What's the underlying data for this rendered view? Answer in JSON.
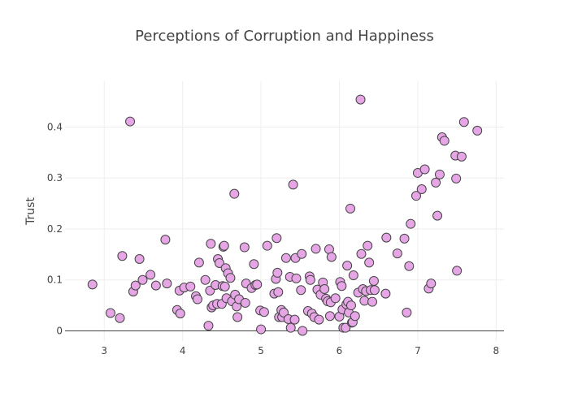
{
  "chart_data": {
    "type": "scatter",
    "title": "Perceptions of Corruption and Happiness",
    "xlabel": "",
    "ylabel": "Trust",
    "xlim": [
      2.5,
      8.1
    ],
    "ylim": [
      -0.02,
      0.49
    ],
    "x_ticks": [
      "3",
      "4",
      "5",
      "6",
      "7",
      "8"
    ],
    "y_ticks": [
      "0",
      "0.1",
      "0.2",
      "0.3",
      "0.4"
    ],
    "grid": true,
    "marker_color": "#e6a6e6",
    "marker_edge_color": "#444444",
    "points": [
      [
        2.85,
        0.091
      ],
      [
        3.08,
        0.035
      ],
      [
        3.2,
        0.025
      ],
      [
        3.23,
        0.147
      ],
      [
        3.33,
        0.411
      ],
      [
        3.37,
        0.077
      ],
      [
        3.4,
        0.089
      ],
      [
        3.45,
        0.141
      ],
      [
        3.49,
        0.1
      ],
      [
        3.59,
        0.11
      ],
      [
        3.66,
        0.089
      ],
      [
        3.78,
        0.179
      ],
      [
        3.8,
        0.093
      ],
      [
        3.93,
        0.041
      ],
      [
        3.96,
        0.079
      ],
      [
        3.97,
        0.034
      ],
      [
        4.02,
        0.085
      ],
      [
        4.1,
        0.087
      ],
      [
        4.17,
        0.068
      ],
      [
        4.19,
        0.062
      ],
      [
        4.21,
        0.134
      ],
      [
        4.29,
        0.1
      ],
      [
        4.33,
        0.01
      ],
      [
        4.35,
        0.079
      ],
      [
        4.36,
        0.171
      ],
      [
        4.37,
        0.046
      ],
      [
        4.39,
        0.05
      ],
      [
        4.42,
        0.09
      ],
      [
        4.44,
        0.053
      ],
      [
        4.45,
        0.141
      ],
      [
        4.47,
        0.133
      ],
      [
        4.5,
        0.053
      ],
      [
        4.51,
        0.088
      ],
      [
        4.52,
        0.165
      ],
      [
        4.53,
        0.167
      ],
      [
        4.54,
        0.087
      ],
      [
        4.55,
        0.123
      ],
      [
        4.56,
        0.064
      ],
      [
        4.58,
        0.113
      ],
      [
        4.61,
        0.104
      ],
      [
        4.63,
        0.058
      ],
      [
        4.66,
        0.269
      ],
      [
        4.67,
        0.071
      ],
      [
        4.69,
        0.048
      ],
      [
        4.7,
        0.027
      ],
      [
        4.72,
        0.062
      ],
      [
        4.79,
        0.164
      ],
      [
        4.8,
        0.055
      ],
      [
        4.81,
        0.093
      ],
      [
        4.88,
        0.084
      ],
      [
        4.91,
        0.131
      ],
      [
        4.93,
        0.09
      ],
      [
        4.95,
        0.091
      ],
      [
        4.99,
        0.04
      ],
      [
        5.0,
        0.003
      ],
      [
        5.04,
        0.037
      ],
      [
        5.08,
        0.167
      ],
      [
        5.17,
        0.073
      ],
      [
        5.19,
        0.102
      ],
      [
        5.2,
        0.182
      ],
      [
        5.21,
        0.114
      ],
      [
        5.22,
        0.076
      ],
      [
        5.23,
        0.027
      ],
      [
        5.26,
        0.041
      ],
      [
        5.27,
        0.027
      ],
      [
        5.29,
        0.036
      ],
      [
        5.32,
        0.143
      ],
      [
        5.35,
        0.023
      ],
      [
        5.37,
        0.106
      ],
      [
        5.38,
        0.006
      ],
      [
        5.41,
        0.287
      ],
      [
        5.43,
        0.022
      ],
      [
        5.44,
        0.143
      ],
      [
        5.45,
        0.103
      ],
      [
        5.51,
        0.08
      ],
      [
        5.52,
        0.151
      ],
      [
        5.53,
        0.0
      ],
      [
        5.6,
        0.039
      ],
      [
        5.62,
        0.107
      ],
      [
        5.63,
        0.1
      ],
      [
        5.65,
        0.034
      ],
      [
        5.68,
        0.027
      ],
      [
        5.7,
        0.161
      ],
      [
        5.72,
        0.081
      ],
      [
        5.74,
        0.022
      ],
      [
        5.76,
        0.071
      ],
      [
        5.79,
        0.095
      ],
      [
        5.81,
        0.082
      ],
      [
        5.83,
        0.063
      ],
      [
        5.85,
        0.058
      ],
      [
        5.87,
        0.16
      ],
      [
        5.88,
        0.029
      ],
      [
        5.89,
        0.056
      ],
      [
        5.9,
        0.145
      ],
      [
        5.95,
        0.064
      ],
      [
        6.0,
        0.028
      ],
      [
        6.01,
        0.096
      ],
      [
        6.03,
        0.088
      ],
      [
        6.04,
        0.042
      ],
      [
        6.05,
        0.006
      ],
      [
        6.08,
        0.006
      ],
      [
        6.09,
        0.052
      ],
      [
        6.1,
        0.128
      ],
      [
        6.11,
        0.057
      ],
      [
        6.12,
        0.036
      ],
      [
        6.14,
        0.24
      ],
      [
        6.15,
        0.05
      ],
      [
        6.16,
        0.016
      ],
      [
        6.17,
        0.017
      ],
      [
        6.18,
        0.109
      ],
      [
        6.2,
        0.029
      ],
      [
        6.24,
        0.075
      ],
      [
        6.27,
        0.454
      ],
      [
        6.28,
        0.151
      ],
      [
        6.3,
        0.082
      ],
      [
        6.32,
        0.059
      ],
      [
        6.34,
        0.078
      ],
      [
        6.36,
        0.167
      ],
      [
        6.38,
        0.134
      ],
      [
        6.4,
        0.08
      ],
      [
        6.42,
        0.057
      ],
      [
        6.44,
        0.098
      ],
      [
        6.45,
        0.08
      ],
      [
        6.59,
        0.073
      ],
      [
        6.6,
        0.183
      ],
      [
        6.74,
        0.152
      ],
      [
        6.83,
        0.181
      ],
      [
        6.86,
        0.036
      ],
      [
        6.89,
        0.127
      ],
      [
        6.91,
        0.21
      ],
      [
        6.98,
        0.265
      ],
      [
        7.0,
        0.31
      ],
      [
        7.05,
        0.278
      ],
      [
        7.09,
        0.317
      ],
      [
        7.14,
        0.083
      ],
      [
        7.17,
        0.093
      ],
      [
        7.23,
        0.291
      ],
      [
        7.25,
        0.226
      ],
      [
        7.28,
        0.307
      ],
      [
        7.31,
        0.38
      ],
      [
        7.34,
        0.373
      ],
      [
        7.48,
        0.344
      ],
      [
        7.49,
        0.299
      ],
      [
        7.5,
        0.118
      ],
      [
        7.56,
        0.342
      ],
      [
        7.59,
        0.41
      ],
      [
        7.76,
        0.393
      ]
    ]
  }
}
